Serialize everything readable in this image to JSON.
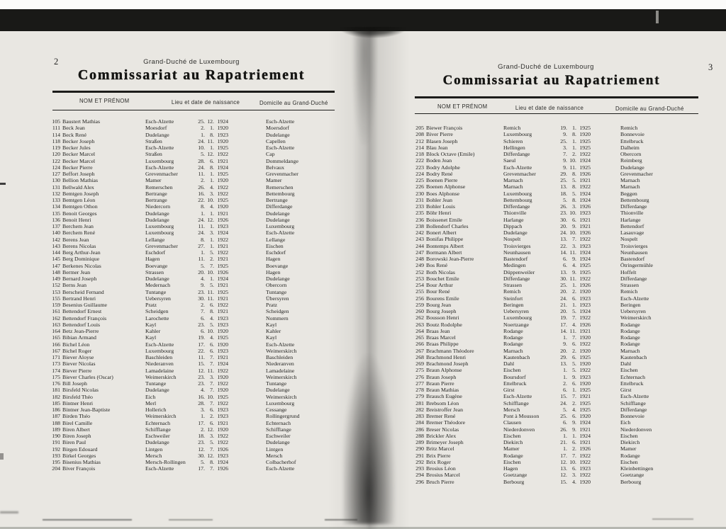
{
  "scan": {
    "paper_color": "#e9e7e2",
    "band_color": "#191917"
  },
  "left_page": {
    "page_number": "2",
    "kicker": "Grand-Duché de Luxembourg",
    "title": "Commissariat au Rapatriement",
    "columns": [
      "NOM ET PRÉNOM",
      "Lieu et date de naissance",
      "Domicile au Grand-Duché"
    ],
    "rows": [
      [
        "105",
        "Baustert Mathias",
        "Esch-Alzette",
        "25. 12. 1924",
        "Esch-Alzette"
      ],
      [
        "111",
        "Beck Jean",
        "Moesdorf",
        "2. 1. 1920",
        "Moersdorf"
      ],
      [
        "114",
        "Beck René",
        "Dudelange",
        "1. 8. 1923",
        "Dudelange"
      ],
      [
        "118",
        "Becker Joseph",
        "Straßen",
        "24. 11. 1920",
        "Capellen"
      ],
      [
        "119",
        "Becker Jules",
        "Esch-Alzette",
        "10. 1. 1925",
        "Esch-Alzette"
      ],
      [
        "120",
        "Becker Marcel",
        "Straßen",
        "5. 12. 1922",
        "Cap"
      ],
      [
        "122",
        "Becker Marcel",
        "Luxembourg",
        "28. 6. 1921",
        "Dommeldange"
      ],
      [
        "124",
        "Becker Pierre",
        "Esch-Alzette",
        "24. 8. 1924",
        "Belvaux"
      ],
      [
        "127",
        "Beffort Joseph",
        "Grevenmacher",
        "11. 1. 1925",
        "Grevenmacher"
      ],
      [
        "130",
        "Bellion Mathias",
        "Mamer",
        "2. 1. 1920",
        "Mamer"
      ],
      [
        "131",
        "Bellwald Alex",
        "Remerschen",
        "26. 4. 1922",
        "Remerschen"
      ],
      [
        "132",
        "Bemtgen Joseph",
        "Bertrange",
        "16. 3. 1922",
        "Bettembourg"
      ],
      [
        "133",
        "Bemtgen Léon",
        "Bertrange",
        "22. 10. 1925",
        "Bertrange"
      ],
      [
        "134",
        "Bemtgen Othon",
        "Niedercorn",
        "8. 4. 1920",
        "Differdange"
      ],
      [
        "135",
        "Benoit Georges",
        "Dudelange",
        "1. 1. 1921",
        "Dudelange"
      ],
      [
        "136",
        "Benoit Henri",
        "Dudelange",
        "24. 12. 1926",
        "Dudelange"
      ],
      [
        "137",
        "Berchem Jean",
        "Luxembourg",
        "11. 1. 1923",
        "Luxembourg"
      ],
      [
        "140",
        "Berchem René",
        "Luxembourg",
        "24. 3. 1924",
        "Esch-Alzette"
      ],
      [
        "142",
        "Berens Jean",
        "Lellange",
        "8. 1. 1922",
        "Lellange"
      ],
      [
        "143",
        "Berens Nicolas",
        "Grevenmacher",
        "27. 1. 1921",
        "Eischen"
      ],
      [
        "144",
        "Berg Arthur-Jean",
        "Eschdorf",
        "1. 5. 1922",
        "Eschdorf"
      ],
      [
        "145",
        "Berg Dominique",
        "Hagen",
        "11. 2. 1921",
        "Hagen"
      ],
      [
        "147",
        "Berkenes Nicolas",
        "Boevange",
        "5. 7. 1925",
        "Boevange"
      ],
      [
        "148",
        "Bermer Jean",
        "Strassen",
        "20. 10. 1926",
        "Hagen"
      ],
      [
        "149",
        "Bernard Joseph",
        "Dudelange",
        "4. 1. 1924",
        "Dudelange"
      ],
      [
        "152",
        "Berns Jean",
        "Medernach",
        "9. 5. 1921",
        "Obercorn"
      ],
      [
        "153",
        "Berscheid Fernand",
        "Tuntange",
        "23. 11. 1925",
        "Tuntange"
      ],
      [
        "155",
        "Bertrand Henri",
        "Uebersyren",
        "30. 11. 1921",
        "Übersyren"
      ],
      [
        "159",
        "Besenius Guillaume",
        "Pratz",
        "2. 6. 1922",
        "Pratz"
      ],
      [
        "161",
        "Bettendorf Ernest",
        "Scheidgen",
        "7. 8. 1921",
        "Scheidgen"
      ],
      [
        "162",
        "Bettendorf François",
        "Larochette",
        "6. 4. 1923",
        "Nommern"
      ],
      [
        "163",
        "Bettendorf Louis",
        "Kayl",
        "23. 5. 1923",
        "Kayl"
      ],
      [
        "164",
        "Betz Jean-Pierre",
        "Kahler",
        "6. 10. 1920",
        "Kahler"
      ],
      [
        "165",
        "Bibian Armand",
        "Kayl",
        "19. 4. 1925",
        "Kayl"
      ],
      [
        "166",
        "Bichel Léon",
        "Esch-Alzette",
        "17. 6. 1920",
        "Esch-Alzette"
      ],
      [
        "167",
        "Bichel Roger",
        "Luxembourg",
        "22. 6. 1923",
        "Weimerskirch"
      ],
      [
        "171",
        "Biever Aloyse",
        "Baschleiden",
        "11. 7. 1921",
        "Baschleiden"
      ],
      [
        "173",
        "Biever Nicolas",
        "Niederanven",
        "15. 7. 1924",
        "Niederanven"
      ],
      [
        "174",
        "Biever Pierre",
        "Lamadelaine",
        "12. 11. 1922",
        "Lamadelaine"
      ],
      [
        "175",
        "Biever Charles (Oscar)",
        "Weimerskirch",
        "23. 3. 1920",
        "Weimerskirch"
      ],
      [
        "176",
        "Bill Joseph",
        "Tuntange",
        "23. 7. 1922",
        "Tuntange"
      ],
      [
        "181",
        "Birsfeld Nicolas",
        "Dudelange",
        "4. 7. 1920",
        "Dudelange"
      ],
      [
        "182",
        "Birsfeld Théo",
        "Eich",
        "16. 10. 1925",
        "Weimerskirch"
      ],
      [
        "185",
        "Bintner Henri",
        "Merl",
        "28. 7. 1922",
        "Luxembourg"
      ],
      [
        "186",
        "Bintner Jean-Baptiste",
        "Hollerich",
        "3. 6. 1923",
        "Cessange"
      ],
      [
        "187",
        "Birden Théo",
        "Weimerskirch",
        "1. 2. 1923",
        "Rollingergrund"
      ],
      [
        "188",
        "Birel Camille",
        "Echternach",
        "17. 6. 1921",
        "Echternach"
      ],
      [
        "189",
        "Biren Albert",
        "Schifflange",
        "2. 12. 1920",
        "Schifflange"
      ],
      [
        "190",
        "Biren Joseph",
        "Eschweiler",
        "18. 3. 1922",
        "Eschweiler"
      ],
      [
        "191",
        "Biren Paul",
        "Dudelange",
        "23. 5. 1922",
        "Dudelange"
      ],
      [
        "192",
        "Birgen Edouard",
        "Lintgen",
        "12. 7. 1926",
        "Lintgen"
      ],
      [
        "193",
        "Birkel Georges",
        "Mersch",
        "30. 12. 1923",
        "Mersch"
      ],
      [
        "195",
        "Bisenius Mathias",
        "Mersch-Rollingen",
        "5. 8. 1924",
        "Colbacherhof"
      ],
      [
        "204",
        "Biver François",
        "Esch-Alzette",
        "17. 7. 1926",
        "Esch-Alzette"
      ]
    ]
  },
  "right_page": {
    "page_number": "3",
    "kicker": "Grand-Duché de Luxembourg",
    "title": "Commissariat au Rapatriement",
    "columns": [
      "NOM ET PRÉNOM",
      "Lieu et date de naissance",
      "Domicile au Grand-Duché"
    ],
    "rows": [
      [
        "205",
        "Biewer François",
        "Remich",
        "19. 1. 1925",
        "Remich"
      ],
      [
        "208",
        "Biver Pierre",
        "Luxembourg",
        "9. 8. 1920",
        "Bonnevoie"
      ],
      [
        "212",
        "Blasen Joseph",
        "Schieren",
        "25. 1. 1925",
        "Ettelbruck"
      ],
      [
        "214",
        "Blau Jean",
        "Hellingen",
        "3. 1. 1925",
        "Dalheim"
      ],
      [
        "218",
        "Block Octave (Emile)",
        "Differdange",
        "7. 2. 1922",
        "Obercorn"
      ],
      [
        "222",
        "Boden Jean",
        "Saeul",
        "9. 10. 1924",
        "Reimberg"
      ],
      [
        "223",
        "Bodry Adolphe",
        "Esch-Alzette",
        "9. 11. 1925",
        "Dudelange"
      ],
      [
        "224",
        "Bodry René",
        "Grevenmacher",
        "29. 8. 1926",
        "Grevenmacher"
      ],
      [
        "225",
        "Boenen Pierre",
        "Marnach",
        "25. 5. 1921",
        "Marnach"
      ],
      [
        "226",
        "Boenen Alphonse",
        "Marnach",
        "13. 8. 1922",
        "Marnach"
      ],
      [
        "230",
        "Boes Alphonse",
        "Luxembourg",
        "18. 5. 1924",
        "Beggen"
      ],
      [
        "231",
        "Bohler Jean",
        "Bettembourg",
        "5. 8. 1924",
        "Bettembourg"
      ],
      [
        "233",
        "Bohler Louis",
        "Differdange",
        "26. 3. 1926",
        "Differdange"
      ],
      [
        "235",
        "Böhr Henri",
        "Thionville",
        "23. 10. 1923",
        "Thionville"
      ],
      [
        "236",
        "Boissenet Emile",
        "Harlange",
        "30. 6. 1921",
        "Harlange"
      ],
      [
        "238",
        "Bollendorf Charles",
        "Dippach",
        "20. 9. 1921",
        "Bettendorf"
      ],
      [
        "242",
        "Bonert Albert",
        "Dudelange",
        "24. 10. 1926",
        "Lasauvage"
      ],
      [
        "243",
        "Bonifas Philippe",
        "Nospelt",
        "13. 7. 1922",
        "Nospelt"
      ],
      [
        "244",
        "Bontemps Albert",
        "Troisvierges",
        "22. 3. 1923",
        "Troisvierges"
      ],
      [
        "247",
        "Bormann Albert",
        "Neunhausen",
        "14. 11. 1924",
        "Neunhausen"
      ],
      [
        "248",
        "Borowski Jean-Pierre",
        "Bastendorf",
        "6. 9. 1924",
        "Bastendorf"
      ],
      [
        "249",
        "Bos René",
        "Medingen",
        "6. 4. 1925",
        "Ötringermühle"
      ],
      [
        "252",
        "Both Nicolas",
        "Düppenweiler",
        "13. 9. 1925",
        "Hoffelt"
      ],
      [
        "253",
        "Bouchet Emile",
        "Differdange",
        "30. 11. 1922",
        "Differdange"
      ],
      [
        "254",
        "Bour Arthur",
        "Strassen",
        "25. 1. 1926",
        "Strassen"
      ],
      [
        "255",
        "Bour René",
        "Remich",
        "20. 2. 1920",
        "Remich"
      ],
      [
        "256",
        "Bourens Emile",
        "Steinfort",
        "24. 6. 1923",
        "Esch-Alzette"
      ],
      [
        "259",
        "Bourg Jean",
        "Beringen",
        "21. 1. 1923",
        "Beringen"
      ],
      [
        "260",
        "Bourg Joseph",
        "Uebersyren",
        "20. 5. 1924",
        "Uebersyren"
      ],
      [
        "262",
        "Bousson Henri",
        "Luxembourg",
        "19. 7. 1922",
        "Weimerskirch"
      ],
      [
        "263",
        "Boutz Rodolphe",
        "Noertzange",
        "17. 4. 1926",
        "Rodange"
      ],
      [
        "264",
        "Braas Jean",
        "Rodange",
        "14. 11. 1921",
        "Rodange"
      ],
      [
        "265",
        "Braas Marcel",
        "Rodange",
        "1. 7. 1920",
        "Rodange"
      ],
      [
        "266",
        "Braas Philippe",
        "Rodange",
        "9. 6. 1922",
        "Rodange"
      ],
      [
        "267",
        "Brachmann Théodore",
        "Marnach",
        "20. 2. 1920",
        "Marnach"
      ],
      [
        "268",
        "Brachmond Henri",
        "Kautenbach",
        "29. 6. 1925",
        "Kautenbach"
      ],
      [
        "269",
        "Brachmond Joseph",
        "Dahl",
        "13. 5. 1920",
        "Dahl"
      ],
      [
        "275",
        "Braun Alphonse",
        "Eischen",
        "1. 5. 1922",
        "Eischen"
      ],
      [
        "276",
        "Braun Joseph",
        "Boursdorf",
        "1. 9. 1923",
        "Echternach"
      ],
      [
        "277",
        "Braun Pierre",
        "Ettelbruck",
        "2. 6. 1920",
        "Ettelbruck"
      ],
      [
        "278",
        "Braun Mathias",
        "Girst",
        "6. 1. 1925",
        "Girst"
      ],
      [
        "279",
        "Brausch Eugène",
        "Esch-Alzette",
        "15. 7. 1921",
        "Esch-Alzette"
      ],
      [
        "281",
        "Brebsom Léon",
        "Schifflange",
        "24. 2. 1925",
        "Schifflange"
      ],
      [
        "282",
        "Breistroffer Jean",
        "Mersch",
        "5. 4. 1925",
        "Differdange"
      ],
      [
        "283",
        "Bremer René",
        "Pont à Mousson",
        "25. 6. 1920",
        "Bonnevoie"
      ],
      [
        "284",
        "Bremer Théodore",
        "Clausen",
        "6. 9. 1924",
        "Eich"
      ],
      [
        "286",
        "Breser Nicolas",
        "Niederdonven",
        "26. 9. 1921",
        "Niederdonven"
      ],
      [
        "288",
        "Brickler Alex",
        "Eischen",
        "1. 1. 1924",
        "Eischen"
      ],
      [
        "289",
        "Brimeyer Joseph",
        "Diekirch",
        "21. 6. 1921",
        "Diekirch"
      ],
      [
        "290",
        "Britz Marcel",
        "Mamer",
        "1. 2. 1926",
        "Mamer"
      ],
      [
        "291",
        "Brix Pierre",
        "Rodange",
        "17. 7. 1922",
        "Rodange"
      ],
      [
        "292",
        "Brix Roger",
        "Eischen",
        "12. 10. 1922",
        "Eischen"
      ],
      [
        "293",
        "Brosius Léon",
        "Hagen",
        "13. 6. 1923",
        "Kleinbettingen"
      ],
      [
        "294",
        "Brosius Marcel",
        "Goetzange",
        "12. 3. 1922",
        "Goetzange"
      ],
      [
        "296",
        "Bruch Pierre",
        "Berbourg",
        "15. 4. 1920",
        "Berbourg"
      ]
    ]
  }
}
